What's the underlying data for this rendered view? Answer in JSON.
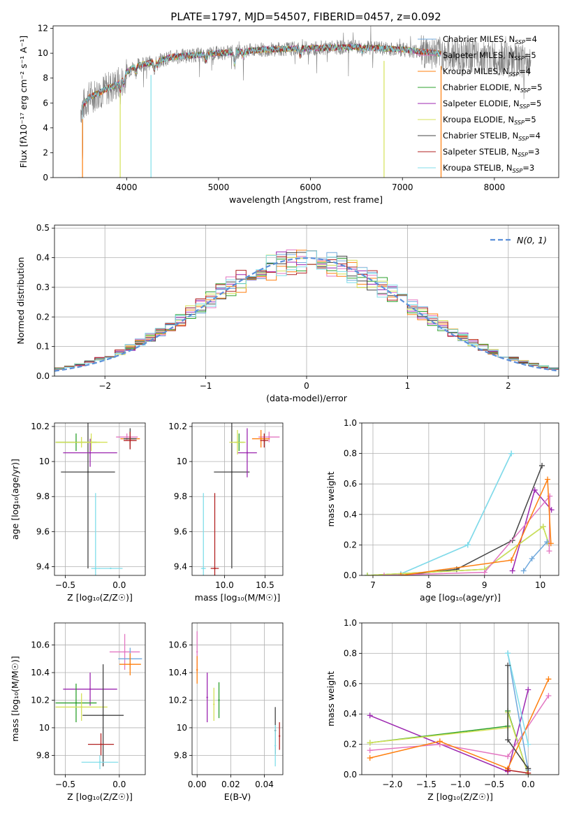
{
  "figure": {
    "colors": {
      "chabrier_miles": "#6fa8dc",
      "salpeter_miles": "#e377c2",
      "kroupa_miles": "#ff7f0e",
      "chabrier_elodie": "#2ca02c",
      "salpeter_elodie": "#9c27b0",
      "kroupa_elodie": "#d4e157",
      "chabrier_stelib": "#444444",
      "salpeter_stelib": "#b22222",
      "kroupa_stelib": "#80deea",
      "data": "#808080",
      "normal_curve": "#5b8fd9"
    }
  },
  "chart_data": [
    {
      "id": "spectrum",
      "type": "line",
      "title": "PLATE=1797, MJD=54507, FIBERID=0457, z=0.092",
      "xlabel": "wavelength [Angstrom, rest frame]",
      "ylabel": "Flux [fλ10⁻¹⁷ erg cm⁻² s⁻¹ A⁻¹]",
      "xlim": [
        3200,
        8700
      ],
      "ylim": [
        0,
        12.2
      ],
      "xticks": [
        4000,
        5000,
        6000,
        7000,
        8000
      ],
      "yticks": [
        0,
        2,
        4,
        6,
        8,
        10,
        12
      ],
      "grid": false,
      "legend_position": "right",
      "legend": [
        {
          "label": "Chabrier MILES, N",
          "sub": "SSP",
          "suffix": "=4",
          "color": "#6fa8dc"
        },
        {
          "label": "Salpeter MILES, N",
          "sub": "SSP",
          "suffix": "=5",
          "color": "#e377c2"
        },
        {
          "label": "Kroupa MILES, N",
          "sub": "SSP",
          "suffix": "=4",
          "color": "#ff7f0e"
        },
        {
          "label": "Chabrier ELODIE, N",
          "sub": "SSP",
          "suffix": "=5",
          "color": "#2ca02c"
        },
        {
          "label": "Salpeter ELODIE, N",
          "sub": "SSP",
          "suffix": "=5",
          "color": "#9c27b0"
        },
        {
          "label": "Kroupa ELODIE, N",
          "sub": "SSP",
          "suffix": "=5",
          "color": "#d4e157"
        },
        {
          "label": "Chabrier STELIB, N",
          "sub": "SSP",
          "suffix": "=4",
          "color": "#444444"
        },
        {
          "label": "Salpeter STELIB, N",
          "sub": "SSP",
          "suffix": "=3",
          "color": "#b22222"
        },
        {
          "label": "Kroupa STELIB, N",
          "sub": "SSP",
          "suffix": "=3",
          "color": "#80deea"
        }
      ],
      "continuum_knots": [
        [
          3500,
          5.5
        ],
        [
          3600,
          6.5
        ],
        [
          3700,
          6.8
        ],
        [
          3800,
          7.2
        ],
        [
          3900,
          7.5
        ],
        [
          4000,
          8.5
        ],
        [
          4100,
          9.0
        ],
        [
          4300,
          9.3
        ],
        [
          4500,
          9.7
        ],
        [
          5000,
          10.0
        ],
        [
          5500,
          10.3
        ],
        [
          6000,
          10.4
        ],
        [
          6500,
          10.5
        ],
        [
          7000,
          10.3
        ],
        [
          7500,
          9.9
        ],
        [
          8000,
          9.6
        ],
        [
          8400,
          9.2
        ]
      ],
      "model_end": [
        3470,
        7420
      ],
      "model_drops": [
        [
          3930,
          0
        ],
        [
          4260,
          0
        ],
        [
          6800,
          0
        ]
      ]
    },
    {
      "id": "residual_hist",
      "type": "bar",
      "xlabel": "(data-model)/error",
      "ylabel": "Normed distribution",
      "xlim": [
        -2.5,
        2.5
      ],
      "ylim": [
        0,
        0.51
      ],
      "xticks": [
        -2,
        -1,
        0,
        1,
        2
      ],
      "yticks": [
        0.0,
        0.1,
        0.2,
        0.3,
        0.4,
        0.5
      ],
      "grid": true,
      "legend_position": "top-right",
      "legend": [
        {
          "label": "N(0, 1)",
          "color": "#5b8fd9"
        }
      ],
      "bin_width": 0.1,
      "sigma_scale": 1.05
    },
    {
      "id": "age_vs_Z",
      "type": "scatter",
      "xlabel": "Z [log₁₀(Z/Z☉)]",
      "ylabel": "age  [log₁₀(age/yr)]",
      "xlim": [
        -0.6,
        0.24
      ],
      "ylim": [
        9.35,
        10.22
      ],
      "xticks": [
        -0.5,
        0.0
      ],
      "xticklabels": [
        "−0.5",
        "0.0"
      ],
      "yticks": [
        9.4,
        9.6,
        9.8,
        10.0,
        10.2
      ],
      "grid": true,
      "points": [
        {
          "x": -0.22,
          "y": 9.39,
          "xerr": 0.04,
          "yerr": 0.43,
          "color": "#80deea"
        },
        {
          "x": -0.08,
          "y": 9.39,
          "xerr": 0.11,
          "yerr": 0.0,
          "color": "#80deea"
        },
        {
          "x": -0.29,
          "y": 9.94,
          "xerr": 0.25,
          "yerr": 0.55,
          "color": "#444444"
        },
        {
          "x": -0.27,
          "y": 10.05,
          "xerr": 0.25,
          "yerr": 0.08,
          "color": "#9c27b0"
        },
        {
          "x": -0.4,
          "y": 10.11,
          "xerr": 0.19,
          "yerr": 0.05,
          "color": "#2ca02c"
        },
        {
          "x": -0.35,
          "y": 10.11,
          "xerr": 0.24,
          "yerr": 0.03,
          "color": "#d4e157"
        },
        {
          "x": -0.26,
          "y": 10.11,
          "xerr": 0.08,
          "yerr": 0.05,
          "color": "#d4e157"
        },
        {
          "x": 0.07,
          "y": 10.14,
          "xerr": 0.1,
          "yerr": 0.02,
          "color": "#e377c2"
        },
        {
          "x": 0.1,
          "y": 10.13,
          "xerr": 0.09,
          "yerr": 0.04,
          "color": "#ff7f0e"
        },
        {
          "x": 0.1,
          "y": 10.13,
          "xerr": 0.06,
          "yerr": 0.06,
          "color": "#444444"
        },
        {
          "x": 0.1,
          "y": 10.12,
          "xerr": 0.06,
          "yerr": 0.05,
          "color": "#b22222"
        }
      ]
    },
    {
      "id": "age_vs_mass",
      "type": "scatter",
      "xlabel": "mass [log₁₀(M/M☉)]",
      "ylabel": "",
      "xlim": [
        9.6,
        10.72
      ],
      "ylim": [
        9.35,
        10.22
      ],
      "xticks": [
        10.0,
        10.5
      ],
      "xticklabels": [
        "10.0",
        "10.5"
      ],
      "yticks": [
        9.4,
        9.6,
        9.8,
        10.0,
        10.2
      ],
      "grid": true,
      "points": [
        {
          "x": 9.74,
          "y": 9.39,
          "xerr": 0.03,
          "yerr": 0.43,
          "color": "#80deea"
        },
        {
          "x": 9.88,
          "y": 9.39,
          "xerr": 0.05,
          "yerr": 0.43,
          "color": "#b22222"
        },
        {
          "x": 10.09,
          "y": 9.94,
          "xerr": 0.22,
          "yerr": 0.55,
          "color": "#444444"
        },
        {
          "x": 10.28,
          "y": 10.05,
          "xerr": 0.12,
          "yerr": 0.14,
          "color": "#9c27b0"
        },
        {
          "x": 10.18,
          "y": 10.11,
          "xerr": 0.06,
          "yerr": 0.05,
          "color": "#2ca02c"
        },
        {
          "x": 10.16,
          "y": 10.11,
          "xerr": 0.1,
          "yerr": 0.07,
          "color": "#d4e157"
        },
        {
          "x": 10.55,
          "y": 10.14,
          "xerr": 0.13,
          "yerr": 0.03,
          "color": "#e377c2"
        },
        {
          "x": 10.45,
          "y": 10.13,
          "xerr": 0.11,
          "yerr": 0.05,
          "color": "#ff7f0e"
        },
        {
          "x": 10.49,
          "y": 10.12,
          "xerr": 0.05,
          "yerr": 0.04,
          "color": "#b22222"
        }
      ]
    },
    {
      "id": "massweight_vs_age",
      "type": "line",
      "xlabel": "age  [log₁₀(age/yr)]",
      "ylabel": "mass weight",
      "xlim": [
        6.8,
        10.33
      ],
      "ylim": [
        0,
        1.0
      ],
      "xticks": [
        7,
        8,
        9,
        10
      ],
      "yticks": [
        0.0,
        0.2,
        0.4,
        0.6,
        0.8,
        1.0
      ],
      "grid": true,
      "series": [
        {
          "color": "#6fa8dc",
          "points": [
            [
              6.9,
              0.0
            ],
            [
              7.5,
              0.01
            ],
            [
              8.7,
              0.2
            ],
            [
              9.48,
              0.8
            ]
          ]
        },
        {
          "color": "#80deea",
          "points": [
            [
              6.9,
              0.0
            ],
            [
              7.5,
              0.01
            ],
            [
              8.7,
              0.2
            ],
            [
              9.48,
              0.8
            ]
          ]
        },
        {
          "color": "#444444",
          "points": [
            [
              7.5,
              0.0
            ],
            [
              8.5,
              0.04
            ],
            [
              9.5,
              0.23
            ],
            [
              10.03,
              0.72
            ]
          ]
        },
        {
          "color": "#9c27b0",
          "points": [
            [
              9.5,
              0.03
            ],
            [
              9.9,
              0.56
            ],
            [
              10.2,
              0.43
            ]
          ]
        },
        {
          "color": "#2ca02c",
          "points": [
            [
              6.9,
              0.0
            ],
            [
              9.0,
              0.04
            ],
            [
              10.05,
              0.32
            ],
            [
              10.15,
              0.21
            ]
          ]
        },
        {
          "color": "#d4e157",
          "points": [
            [
              6.9,
              0.0
            ],
            [
              9.0,
              0.04
            ],
            [
              10.05,
              0.32
            ],
            [
              10.15,
              0.21
            ]
          ]
        },
        {
          "color": "#6fa8dc",
          "points": [
            [
              9.7,
              0.03
            ],
            [
              9.85,
              0.11
            ],
            [
              10.12,
              0.22
            ]
          ]
        },
        {
          "color": "#e377c2",
          "points": [
            [
              7.2,
              0.0
            ],
            [
              9.0,
              0.02
            ],
            [
              10.17,
              0.52
            ],
            [
              10.16,
              0.16
            ]
          ]
        },
        {
          "color": "#ff7f0e",
          "points": [
            [
              7.5,
              0.0
            ],
            [
              9.48,
              0.1
            ],
            [
              10.13,
              0.63
            ],
            [
              10.19,
              0.21
            ]
          ]
        }
      ]
    },
    {
      "id": "mass_vs_Z",
      "type": "scatter",
      "xlabel": "Z [log₁₀(Z/Z☉)]",
      "ylabel": "mass [log₁₀(M/M☉)]",
      "xlim": [
        -0.6,
        0.24
      ],
      "ylim": [
        9.66,
        10.76
      ],
      "xticks": [
        -0.5,
        0.0
      ],
      "xticklabels": [
        "−0.5",
        "0.0"
      ],
      "yticks": [
        9.8,
        10.0,
        10.2,
        10.4,
        10.6
      ],
      "grid": true,
      "points": [
        {
          "x": 0.05,
          "y": 10.55,
          "xerr": 0.14,
          "yerr": 0.13,
          "color": "#e377c2"
        },
        {
          "x": 0.1,
          "y": 10.5,
          "xerr": 0.11,
          "yerr": 0.08,
          "color": "#6fa8dc"
        },
        {
          "x": 0.1,
          "y": 10.46,
          "xerr": 0.1,
          "yerr": 0.08,
          "color": "#ff7f0e"
        },
        {
          "x": -0.27,
          "y": 10.28,
          "xerr": 0.25,
          "yerr": 0.12,
          "color": "#9c27b0"
        },
        {
          "x": -0.4,
          "y": 10.18,
          "xerr": 0.19,
          "yerr": 0.14,
          "color": "#2ca02c"
        },
        {
          "x": -0.35,
          "y": 10.15,
          "xerr": 0.24,
          "yerr": 0.1,
          "color": "#d4e157"
        },
        {
          "x": -0.15,
          "y": 10.09,
          "xerr": 0.19,
          "yerr": 0.37,
          "color": "#444444"
        },
        {
          "x": -0.17,
          "y": 9.88,
          "xerr": 0.12,
          "yerr": 0.08,
          "color": "#b22222"
        },
        {
          "x": -0.18,
          "y": 9.75,
          "xerr": 0.17,
          "yerr": 0.05,
          "color": "#80deea"
        }
      ]
    },
    {
      "id": "mass_vs_ebv",
      "type": "scatter",
      "xlabel": "E(B-V)",
      "ylabel": "",
      "xlim": [
        -0.003,
        0.051
      ],
      "ylim": [
        9.66,
        10.76
      ],
      "xticks": [
        0.0,
        0.02,
        0.04
      ],
      "xticklabels": [
        "0.00",
        "0.02",
        "0.04"
      ],
      "yticks": [
        9.8,
        10.0,
        10.2,
        10.4,
        10.6
      ],
      "grid": true,
      "points": [
        {
          "x": 0.0,
          "y": 10.55,
          "xerr": 0.0,
          "yerr": 0.15,
          "color": "#e377c2"
        },
        {
          "x": 0.0,
          "y": 10.42,
          "xerr": 0.0,
          "yerr": 0.1,
          "color": "#ff7f0e"
        },
        {
          "x": 0.006,
          "y": 10.22,
          "xerr": 0.0,
          "yerr": 0.18,
          "color": "#9c27b0"
        },
        {
          "x": 0.01,
          "y": 10.17,
          "xerr": 0.0,
          "yerr": 0.12,
          "color": "#d4e157"
        },
        {
          "x": 0.013,
          "y": 10.2,
          "xerr": 0.0,
          "yerr": 0.13,
          "color": "#2ca02c"
        },
        {
          "x": 0.0465,
          "y": 9.98,
          "xerr": 0.0,
          "yerr": 0.17,
          "color": "#444444"
        },
        {
          "x": 0.0465,
          "y": 9.87,
          "xerr": 0.0,
          "yerr": 0.15,
          "color": "#80deea"
        },
        {
          "x": 0.049,
          "y": 9.94,
          "xerr": 0.0,
          "yerr": 0.1,
          "color": "#b22222"
        }
      ]
    },
    {
      "id": "massweight_vs_Z",
      "type": "line",
      "xlabel": "Z [log₁₀(Z/Z☉)]",
      "ylabel": "mass weight",
      "xlim": [
        -2.45,
        0.45
      ],
      "ylim": [
        0,
        1.0
      ],
      "xticks": [
        -2.0,
        -1.5,
        -1.0,
        -0.5,
        0.0
      ],
      "xticklabels": [
        "−2.0",
        "−1.5",
        "−1.0",
        "−0.5",
        "0.0"
      ],
      "yticks": [
        0.0,
        0.2,
        0.4,
        0.6,
        0.8,
        1.0
      ],
      "grid": true,
      "series": [
        {
          "color": "#9c27b0",
          "points": [
            [
              -2.33,
              0.39
            ],
            [
              -0.3,
              0.02
            ],
            [
              0.0,
              0.56
            ]
          ]
        },
        {
          "color": "#2ca02c",
          "points": [
            [
              -2.33,
              0.21
            ],
            [
              -0.3,
              0.32
            ],
            [
              -0.3,
              0.42
            ],
            [
              0.0,
              0.0
            ]
          ]
        },
        {
          "color": "#d4e157",
          "points": [
            [
              -2.33,
              0.21
            ],
            [
              -0.3,
              0.31
            ],
            [
              -0.3,
              0.41
            ],
            [
              0.0,
              0.0
            ]
          ]
        },
        {
          "color": "#e377c2",
          "points": [
            [
              -2.33,
              0.16
            ],
            [
              -1.3,
              0.2
            ],
            [
              -0.3,
              0.12
            ],
            [
              0.3,
              0.52
            ]
          ]
        },
        {
          "color": "#ff7f0e",
          "points": [
            [
              -2.33,
              0.11
            ],
            [
              -1.3,
              0.22
            ],
            [
              -0.3,
              0.04
            ],
            [
              0.3,
              0.63
            ]
          ]
        },
        {
          "color": "#6fa8dc",
          "points": [
            [
              -0.3,
              0.8
            ],
            [
              0.0,
              0.03
            ]
          ]
        },
        {
          "color": "#80deea",
          "points": [
            [
              -0.3,
              0.8
            ],
            [
              0.0,
              0.2
            ]
          ]
        },
        {
          "color": "#444444",
          "points": [
            [
              -0.3,
              0.72
            ],
            [
              -0.3,
              0.23
            ],
            [
              0.0,
              0.04
            ]
          ]
        },
        {
          "color": "#b22222",
          "points": [
            [
              -0.3,
              0.03
            ],
            [
              0.0,
              0.01
            ]
          ]
        }
      ]
    }
  ]
}
